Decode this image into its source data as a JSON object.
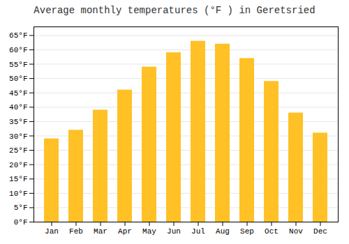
{
  "chart_data": {
    "type": "bar",
    "title": "Average monthly temperatures (°F ) in Geretsried",
    "categories": [
      "Jan",
      "Feb",
      "Mar",
      "Apr",
      "May",
      "Jun",
      "Jul",
      "Aug",
      "Sep",
      "Oct",
      "Nov",
      "Dec"
    ],
    "values": [
      29,
      32,
      39,
      46,
      54,
      59,
      63,
      62,
      57,
      49,
      38,
      31
    ],
    "color": "#FFC125",
    "ylim": [
      0,
      68
    ],
    "yticks": [
      {
        "value": 0,
        "label": "0°F"
      },
      {
        "value": 5,
        "label": "5°F"
      },
      {
        "value": 10,
        "label": "10°F"
      },
      {
        "value": 15,
        "label": "15°F"
      },
      {
        "value": 20,
        "label": "20°F"
      },
      {
        "value": 25,
        "label": "25°F"
      },
      {
        "value": 30,
        "label": "30°F"
      },
      {
        "value": 35,
        "label": "35°F"
      },
      {
        "value": 40,
        "label": "40°F"
      },
      {
        "value": 45,
        "label": "45°F"
      },
      {
        "value": 50,
        "label": "50°F"
      },
      {
        "value": 55,
        "label": "55°F"
      },
      {
        "value": 60,
        "label": "60°F"
      },
      {
        "value": 65,
        "label": "65°F"
      }
    ],
    "grid": true
  }
}
